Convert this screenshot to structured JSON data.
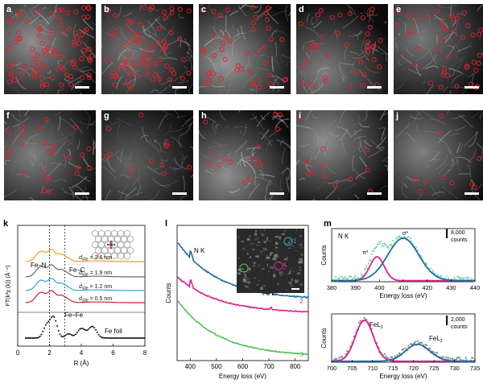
{
  "panel_labels": [
    "a",
    "b",
    "c",
    "d",
    "e",
    "f",
    "g",
    "h",
    "i",
    "j",
    "k",
    "l",
    "m"
  ],
  "microscopy_panels": [
    {
      "label": "a",
      "circle_count": 90,
      "bright": 0.55
    },
    {
      "label": "b",
      "circle_count": 75,
      "bright": 0.38
    },
    {
      "label": "c",
      "circle_count": 45,
      "bright": 0.62
    },
    {
      "label": "d",
      "circle_count": 40,
      "bright": 0.45
    },
    {
      "label": "e",
      "circle_count": 42,
      "bright": 0.4
    },
    {
      "label": "f",
      "circle_count": 25,
      "bright": 0.45
    },
    {
      "label": "g",
      "circle_count": 12,
      "bright": 0.25
    },
    {
      "label": "h",
      "circle_count": 15,
      "bright": 0.55
    },
    {
      "label": "i",
      "circle_count": 12,
      "bright": 0.55
    },
    {
      "label": "j",
      "circle_count": 10,
      "bright": 0.45
    }
  ],
  "colors": {
    "circle": "#e8202a",
    "dark_bg": "#111111"
  },
  "chart_data": [
    {
      "panel": "k",
      "type": "line",
      "xlabel": "R (Å)",
      "ylabel": "FT(k³χ (k)) (Å⁻⁴)",
      "xlim": [
        0,
        8
      ],
      "x_ticks": [
        "0",
        "2",
        "4",
        "6",
        "8"
      ],
      "annotations": [
        "Fe–N",
        "Fe–C",
        "Fe–Fe",
        "Fe foil"
      ],
      "dashed_lines_x": [
        2.0,
        2.95
      ],
      "series": [
        {
          "name": "d_site = 2.6 nm",
          "color": "#f39c1b",
          "peak_x": [
            1.45,
            2.1,
            2.7,
            3.0
          ]
        },
        {
          "name": "d_site = 1.9 nm",
          "color": "#666666",
          "peak_x": [
            1.45,
            2.1,
            2.7,
            3.0
          ]
        },
        {
          "name": "d_site = 1.2 nm",
          "color": "#37a2de",
          "peak_x": [
            1.45,
            2.1,
            2.7,
            3.0
          ]
        },
        {
          "name": "d_site = 0.5 nm",
          "color": "#c8232a",
          "peak_x": [
            1.45,
            2.1,
            2.7,
            3.0
          ]
        },
        {
          "name": "Fe foil",
          "color": "#111111",
          "peak_x": [
            2.25,
            4.0,
            4.7
          ]
        }
      ]
    },
    {
      "panel": "l",
      "type": "line",
      "xlabel": "Energy loss (eV)",
      "ylabel": "Counts",
      "xlim": [
        350,
        850
      ],
      "x_ticks": [
        "400",
        "500",
        "600",
        "700",
        "800"
      ],
      "annotations": [
        "N K",
        "Fe L"
      ],
      "series": [
        {
          "name": "1",
          "color": "#1b6fa4",
          "start": 0.88,
          "end": 0.45
        },
        {
          "name": "2",
          "color": "#e0228a",
          "start": 0.62,
          "end": 0.35
        },
        {
          "name": "3",
          "color": "#59c05b",
          "start": 0.45,
          "end": 0.03
        }
      ],
      "inset_labels": [
        "1",
        "2",
        "3"
      ],
      "inset_label_colors": [
        "#37a2de",
        "#e0228a",
        "#59c05b"
      ]
    },
    {
      "panel": "m_top",
      "type": "scatter",
      "title": "N K",
      "xlabel": "Energy loss (eV)",
      "ylabel": "Counts",
      "xlim": [
        380,
        440
      ],
      "x_ticks": [
        "380",
        "390",
        "400",
        "410",
        "420",
        "430",
        "440"
      ],
      "scale_bar": "8,000 counts",
      "peaks": [
        {
          "name": "π*",
          "center": 399,
          "amplitude": 0.45,
          "width": 3.0,
          "color": "#e0228a"
        },
        {
          "name": "σ*",
          "center": 410,
          "amplitude": 0.8,
          "width": 6.5,
          "color": "#1b6fa4"
        }
      ],
      "points_color": "#7ad6a0"
    },
    {
      "panel": "m_bottom",
      "type": "scatter",
      "xlabel": "Energy loss (eV)",
      "ylabel": "Counts",
      "xlim": [
        700,
        735
      ],
      "x_ticks": [
        "700",
        "705",
        "710",
        "715",
        "720",
        "725",
        "730",
        "735"
      ],
      "scale_bar": "2,000 counts",
      "peaks": [
        {
          "name": "FeL₃",
          "center": 708,
          "amplitude": 0.85,
          "width": 2.2,
          "color": "#e0228a"
        },
        {
          "name": "FeL₂",
          "center": 721,
          "amplitude": 0.35,
          "width": 3.0,
          "color": "#1b6fa4"
        }
      ],
      "points_color": "#888888"
    }
  ],
  "k_labels": {
    "fe_n": "Fe–N",
    "fe_c": "Fe–C",
    "fe_fe": "Fe–Fe",
    "foil": "Fe foil",
    "xlabel": "R (Å)",
    "ylabel": "FT(k³χ (k)) (Å⁻⁴)"
  },
  "k_dsite": [
    "d",
    "site"
  ],
  "k_values": [
    "= 2.6 nm",
    "= 1.9 nm",
    "= 1.2 nm",
    "= 0.5 nm"
  ],
  "l_labels": {
    "nk": "N K",
    "fel": "Fe L",
    "xlabel": "Energy loss (eV)",
    "ylabel": "Counts",
    "n1": "1",
    "n2": "2",
    "n3": "3"
  },
  "m_labels": {
    "top_title": "N K",
    "pi": "π*",
    "sigma": "σ*",
    "scale_top": "8,000",
    "scale_top2": "counts",
    "scale_bot": "2,000",
    "scale_bot2": "counts",
    "fel3": "FeL",
    "fel3_sub": "3",
    "fel2": "FeL",
    "fel2_sub": "2",
    "xlabel": "Energy loss (eV)",
    "ylabel": "Counts"
  }
}
